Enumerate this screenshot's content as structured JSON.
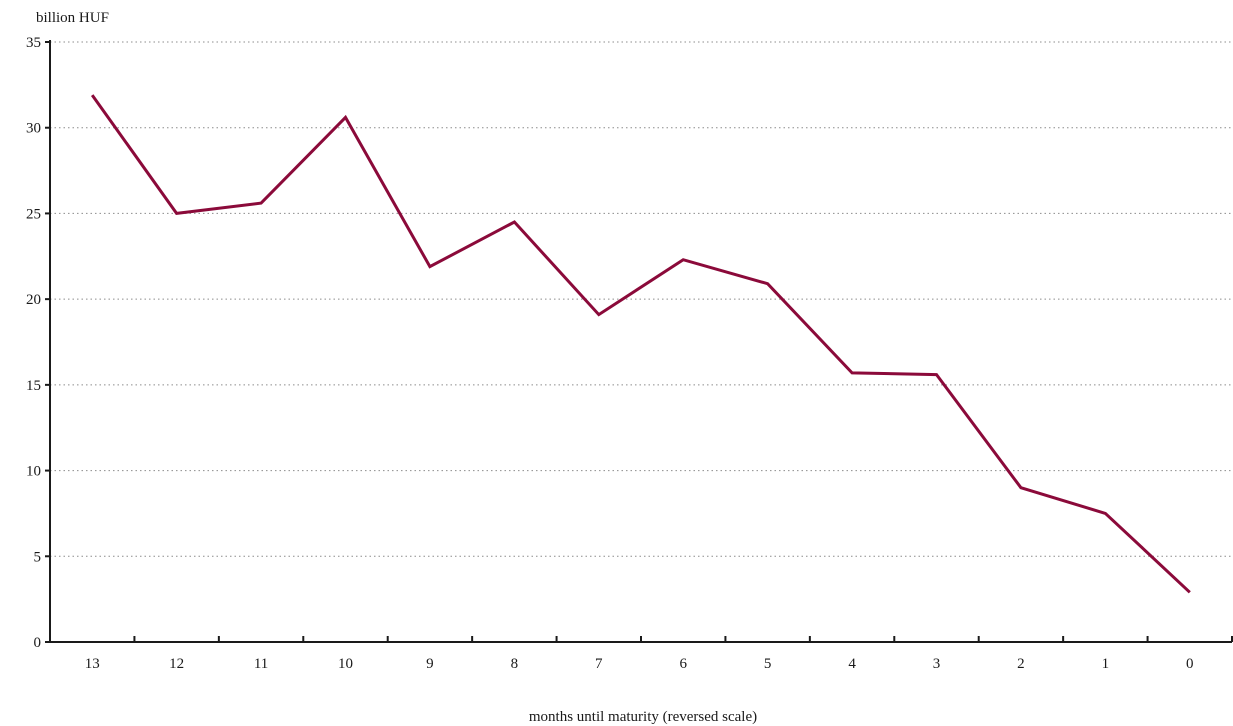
{
  "chart_data": {
    "type": "line",
    "title": "",
    "unit_label": "billion HUF",
    "xlabel": "months until maturity (reversed scale)",
    "ylabel": "",
    "x": [
      13,
      12,
      11,
      10,
      9,
      8,
      7,
      6,
      5,
      4,
      3,
      2,
      1,
      0
    ],
    "x_reversed": true,
    "xlim": [
      13,
      0
    ],
    "ylim": [
      0,
      35
    ],
    "yticks": [
      0,
      5,
      10,
      15,
      20,
      25,
      30,
      35
    ],
    "grid": {
      "y": true,
      "x": false,
      "style": "dotted"
    },
    "legend": "none",
    "series": [
      {
        "color": "#8b0a3a",
        "values": [
          31.9,
          25.0,
          25.6,
          30.6,
          21.9,
          24.5,
          19.1,
          22.3,
          20.9,
          15.7,
          15.6,
          9.0,
          7.5,
          2.9
        ]
      }
    ]
  }
}
